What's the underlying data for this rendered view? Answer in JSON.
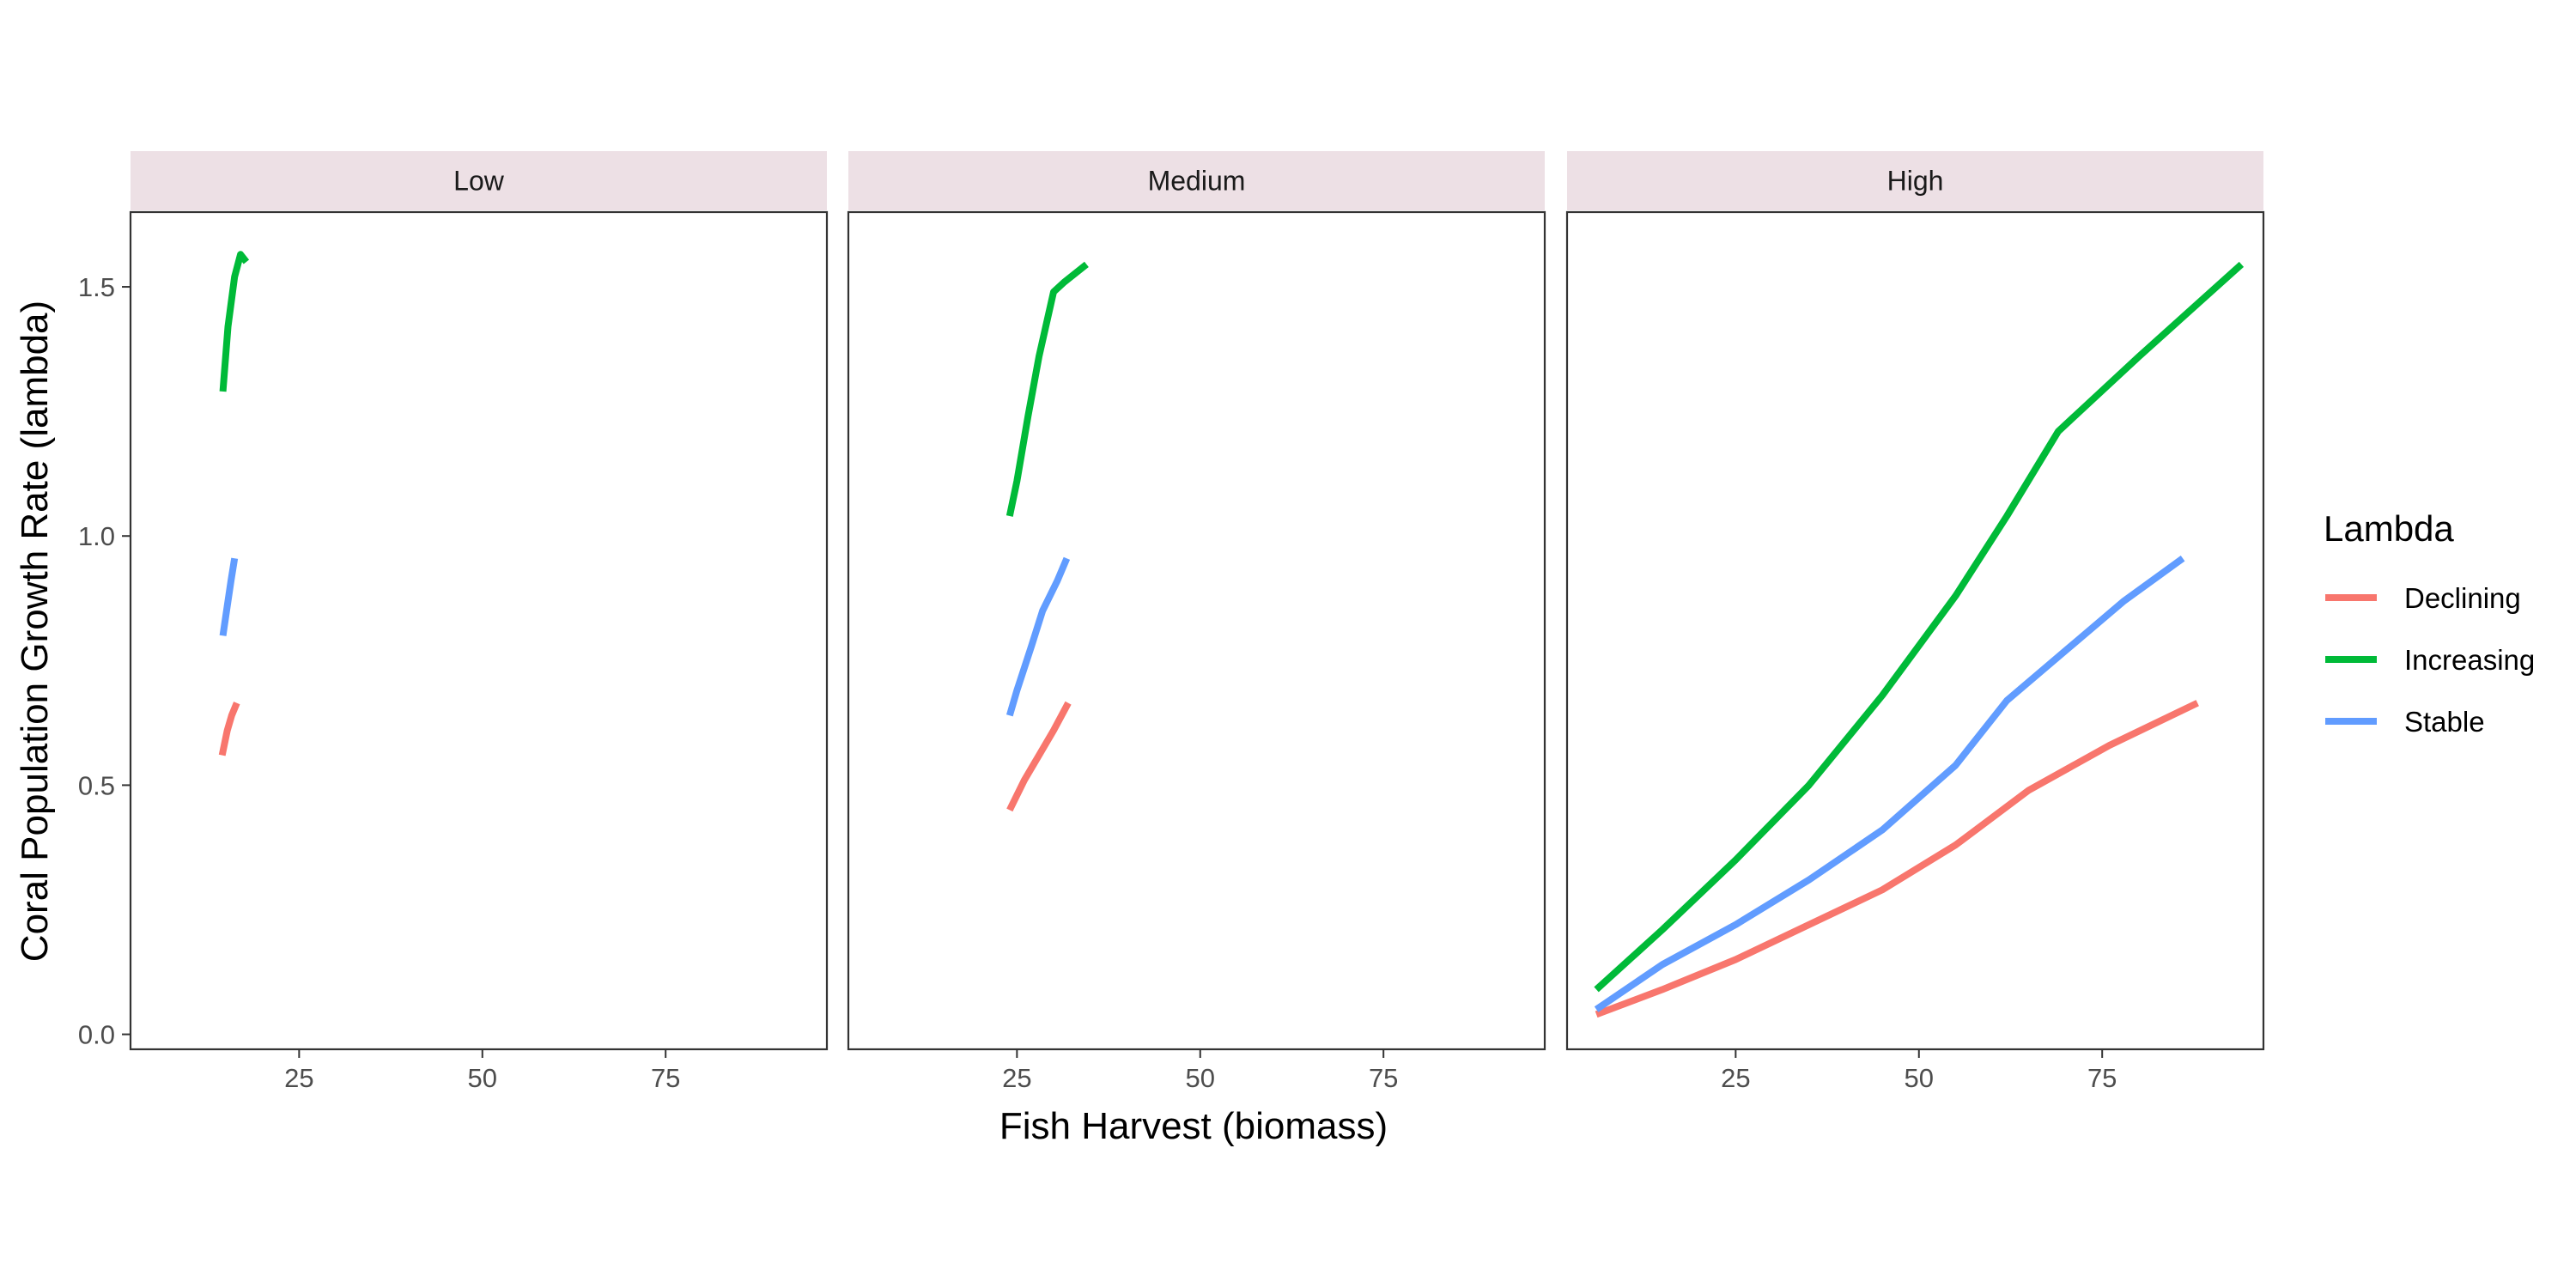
{
  "chart_data": {
    "type": "line",
    "xlabel": "Fish Harvest (biomass)",
    "ylabel": "Coral Population Growth Rate (lambda)",
    "xlim": [
      2,
      97
    ],
    "ylim": [
      -0.03,
      1.65
    ],
    "xticks": [
      25,
      50,
      75
    ],
    "yticks": [
      0.0,
      0.5,
      1.0,
      1.5
    ],
    "ytick_labels": [
      "0.0",
      "0.5",
      "1.0",
      "1.5"
    ],
    "legend": {
      "title": "Lambda",
      "position": "right",
      "entries": [
        {
          "name": "Declining",
          "color": "#F8766D"
        },
        {
          "name": "Increasing",
          "color": "#00BA38"
        },
        {
          "name": "Stable",
          "color": "#619CFF"
        }
      ]
    },
    "panels": [
      {
        "label": "Low",
        "series": [
          {
            "name": "Declining",
            "x": [
              14.5,
              15.2,
              15.8,
              16.5
            ],
            "y": [
              0.56,
              0.61,
              0.64,
              0.665
            ]
          },
          {
            "name": "Increasing",
            "x": [
              14.6,
              15.3,
              16.2,
              17.0,
              17.8
            ],
            "y": [
              1.29,
              1.42,
              1.52,
              1.565,
              1.55
            ]
          },
          {
            "name": "Stable",
            "x": [
              14.6,
              15.2,
              15.7,
              16.2
            ],
            "y": [
              0.8,
              0.86,
              0.91,
              0.955
            ]
          }
        ]
      },
      {
        "label": "Medium",
        "series": [
          {
            "name": "Declining",
            "x": [
              24.0,
              26.0,
              28.0,
              30.0,
              32.0
            ],
            "y": [
              0.45,
              0.51,
              0.56,
              0.61,
              0.665
            ]
          },
          {
            "name": "Increasing",
            "x": [
              24.0,
              25.0,
              26.5,
              28.0,
              30.0,
              31.5,
              34.5
            ],
            "y": [
              1.04,
              1.11,
              1.24,
              1.36,
              1.49,
              1.51,
              1.545
            ]
          },
          {
            "name": "Stable",
            "x": [
              24.0,
              25.0,
              27.0,
              28.5,
              30.5,
              31.8
            ],
            "y": [
              0.64,
              0.69,
              0.78,
              0.85,
              0.91,
              0.955
            ]
          }
        ]
      },
      {
        "label": "High",
        "series": [
          {
            "name": "Declining",
            "x": [
              6,
              15,
              25,
              35,
              45,
              55,
              65,
              76,
              88
            ],
            "y": [
              0.04,
              0.09,
              0.15,
              0.22,
              0.29,
              0.38,
              0.49,
              0.58,
              0.665
            ]
          },
          {
            "name": "Increasing",
            "x": [
              6,
              15,
              25,
              35,
              45,
              55,
              62,
              69,
              80,
              94
            ],
            "y": [
              0.09,
              0.21,
              0.35,
              0.5,
              0.68,
              0.88,
              1.04,
              1.21,
              1.36,
              1.545
            ]
          },
          {
            "name": "Stable",
            "x": [
              6,
              15,
              25,
              35,
              45,
              55,
              62,
              70,
              78,
              86
            ],
            "y": [
              0.05,
              0.14,
              0.22,
              0.31,
              0.41,
              0.54,
              0.67,
              0.77,
              0.87,
              0.955
            ]
          }
        ]
      }
    ]
  }
}
